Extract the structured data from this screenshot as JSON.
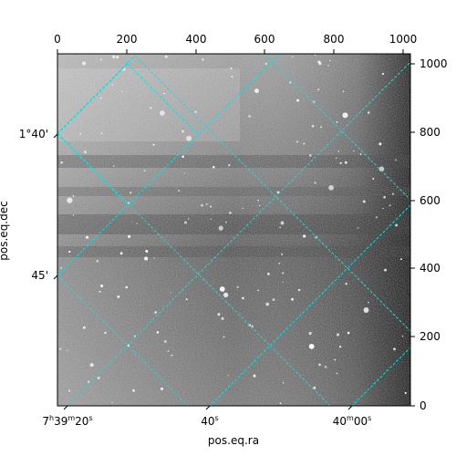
{
  "figure": {
    "xlabel": "pos.eq.ra",
    "ylabel": "pos.eq.dec",
    "top_ticks": [
      "0",
      "200",
      "400",
      "600",
      "800",
      "1000"
    ],
    "right_ticks": [
      "0",
      "200",
      "400",
      "600",
      "800",
      "1000"
    ],
    "ra_ticks": [
      {
        "h": "7",
        "hs": "h",
        "m": "39",
        "ms": "m",
        "s": "20",
        "ss": "s"
      },
      {
        "s": "40",
        "ss": "s"
      },
      {
        "m": "40",
        "ms": "m",
        "s": "00",
        "ss": "s"
      }
    ],
    "dec_ticks": [
      "1°40'",
      "45'"
    ],
    "grid_color": "#00e5e5",
    "image_style": "grayscale star field"
  }
}
